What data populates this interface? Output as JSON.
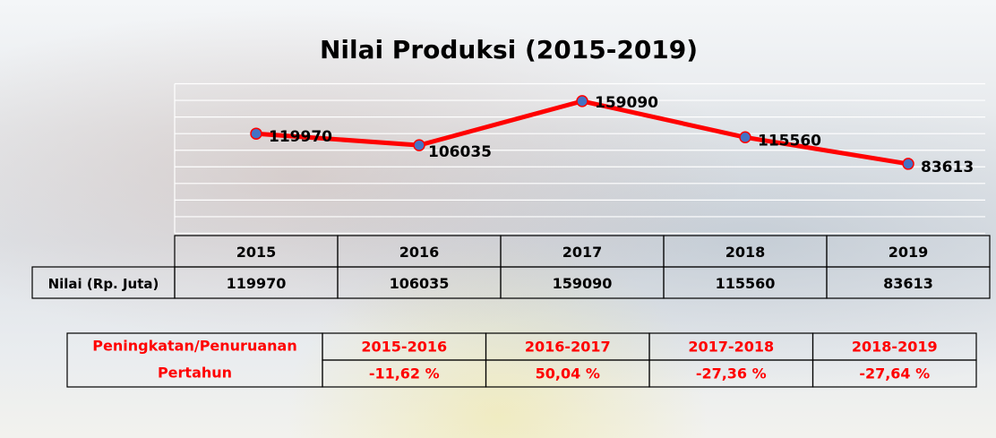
{
  "chart_data": {
    "type": "line",
    "title": "Nilai Produksi (2015-2019)",
    "categories": [
      "2015",
      "2016",
      "2017",
      "2018",
      "2019"
    ],
    "values": [
      119970,
      106035,
      159090,
      115560,
      83613
    ],
    "color": "#ff0000",
    "marker_color": "#4472c4",
    "ylim": [
      0,
      180000
    ],
    "yticks": [
      0,
      20000,
      40000,
      60000,
      80000,
      100000,
      120000,
      140000,
      160000,
      180000
    ],
    "grid": true
  },
  "value_table": {
    "row_label": "Nilai (Rp. Juta)"
  },
  "change_table": {
    "label_lines": [
      "Peningkatan/Penuruanan",
      "Pertahun"
    ],
    "periods": [
      "2015-2016",
      "2016-2017",
      "2017-2018",
      "2018-2019"
    ],
    "changes": [
      "-11,62 %",
      "50,04 %",
      "-27,36 %",
      "-27,64 %"
    ]
  }
}
